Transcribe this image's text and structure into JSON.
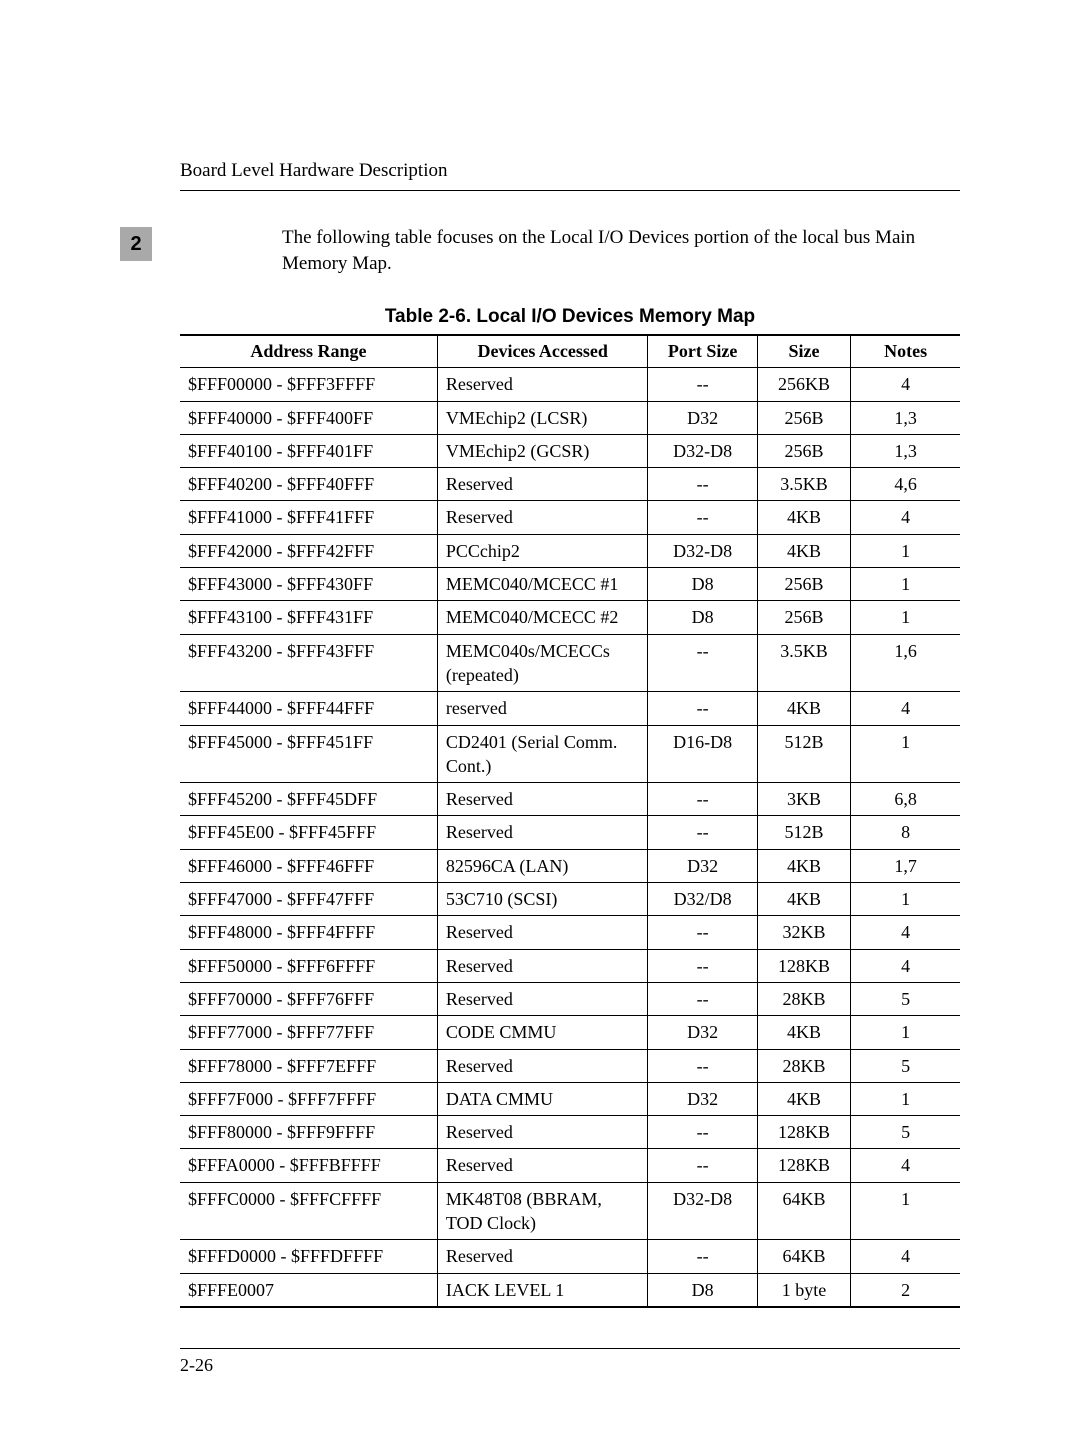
{
  "page": {
    "running_head": "Board Level Hardware Description",
    "chapter_tab": "2",
    "intro": "The following table focuses on the Local I/O Devices portion of the local bus Main Memory Map.",
    "page_number": "2-26"
  },
  "table": {
    "title": "Table 2-6.  Local I/O Devices Memory Map",
    "columns": [
      "Address Range",
      "Devices Accessed",
      "Port Size",
      "Size",
      "Notes"
    ],
    "col_widths_pct": [
      33,
      27,
      14,
      12,
      14
    ],
    "rows": [
      [
        "$FFF00000 - $FFF3FFFF",
        "Reserved",
        "--",
        "256KB",
        "4"
      ],
      [
        "$FFF40000 - $FFF400FF",
        "VMEchip2 (LCSR)",
        "D32",
        "256B",
        "1,3"
      ],
      [
        "$FFF40100 - $FFF401FF",
        "VMEchip2 (GCSR)",
        "D32-D8",
        "256B",
        "1,3"
      ],
      [
        "$FFF40200 - $FFF40FFF",
        "Reserved",
        "--",
        "3.5KB",
        "4,6"
      ],
      [
        "$FFF41000 - $FFF41FFF",
        "Reserved",
        "--",
        "4KB",
        "4"
      ],
      [
        "$FFF42000 - $FFF42FFF",
        "PCCchip2",
        "D32-D8",
        "4KB",
        "1"
      ],
      [
        "$FFF43000 - $FFF430FF",
        "MEMC040/MCECC #1",
        "D8",
        "256B",
        "1"
      ],
      [
        "$FFF43100 - $FFF431FF",
        "MEMC040/MCECC #2",
        "D8",
        "256B",
        "1"
      ],
      [
        "$FFF43200 - $FFF43FFF",
        "MEMC040s/MCECCs (repeated)",
        "--",
        "3.5KB",
        "1,6"
      ],
      [
        "$FFF44000 - $FFF44FFF",
        "reserved",
        "--",
        "4KB",
        "4"
      ],
      [
        "$FFF45000 - $FFF451FF",
        "CD2401 (Serial Comm. Cont.)",
        "D16-D8",
        "512B",
        "1"
      ],
      [
        "$FFF45200 - $FFF45DFF",
        "Reserved",
        "--",
        "3KB",
        "6,8"
      ],
      [
        "$FFF45E00 - $FFF45FFF",
        "Reserved",
        "--",
        "512B",
        "8"
      ],
      [
        "$FFF46000 - $FFF46FFF",
        "82596CA (LAN)",
        "D32",
        "4KB",
        "1,7"
      ],
      [
        "$FFF47000 - $FFF47FFF",
        "53C710 (SCSI)",
        "D32/D8",
        "4KB",
        "1"
      ],
      [
        "$FFF48000 - $FFF4FFFF",
        "Reserved",
        "--",
        "32KB",
        "4"
      ],
      [
        "$FFF50000 - $FFF6FFFF",
        "Reserved",
        "--",
        "128KB",
        "4"
      ],
      [
        "$FFF70000 - $FFF76FFF",
        "Reserved",
        "--",
        "28KB",
        "5"
      ],
      [
        "$FFF77000 - $FFF77FFF",
        "CODE CMMU",
        "D32",
        "4KB",
        "1"
      ],
      [
        "$FFF78000 - $FFF7EFFF",
        "Reserved",
        "--",
        "28KB",
        "5"
      ],
      [
        "$FFF7F000 - $FFF7FFFF",
        "DATA CMMU",
        "D32",
        "4KB",
        "1"
      ],
      [
        "$FFF80000 - $FFF9FFFF",
        "Reserved",
        "--",
        "128KB",
        "5"
      ],
      [
        "$FFFA0000 - $FFFBFFFF",
        "Reserved",
        "--",
        "128KB",
        "4"
      ],
      [
        "$FFFC0000 - $FFFCFFFF",
        "MK48T08 (BBRAM, TOD Clock)",
        "D32-D8",
        "64KB",
        "1"
      ],
      [
        "$FFFD0000 - $FFFDFFFF",
        "Reserved",
        "--",
        "64KB",
        "4"
      ],
      [
        "$FFFE0007",
        "IACK LEVEL 1",
        "D8",
        "1 byte",
        "2"
      ]
    ]
  }
}
